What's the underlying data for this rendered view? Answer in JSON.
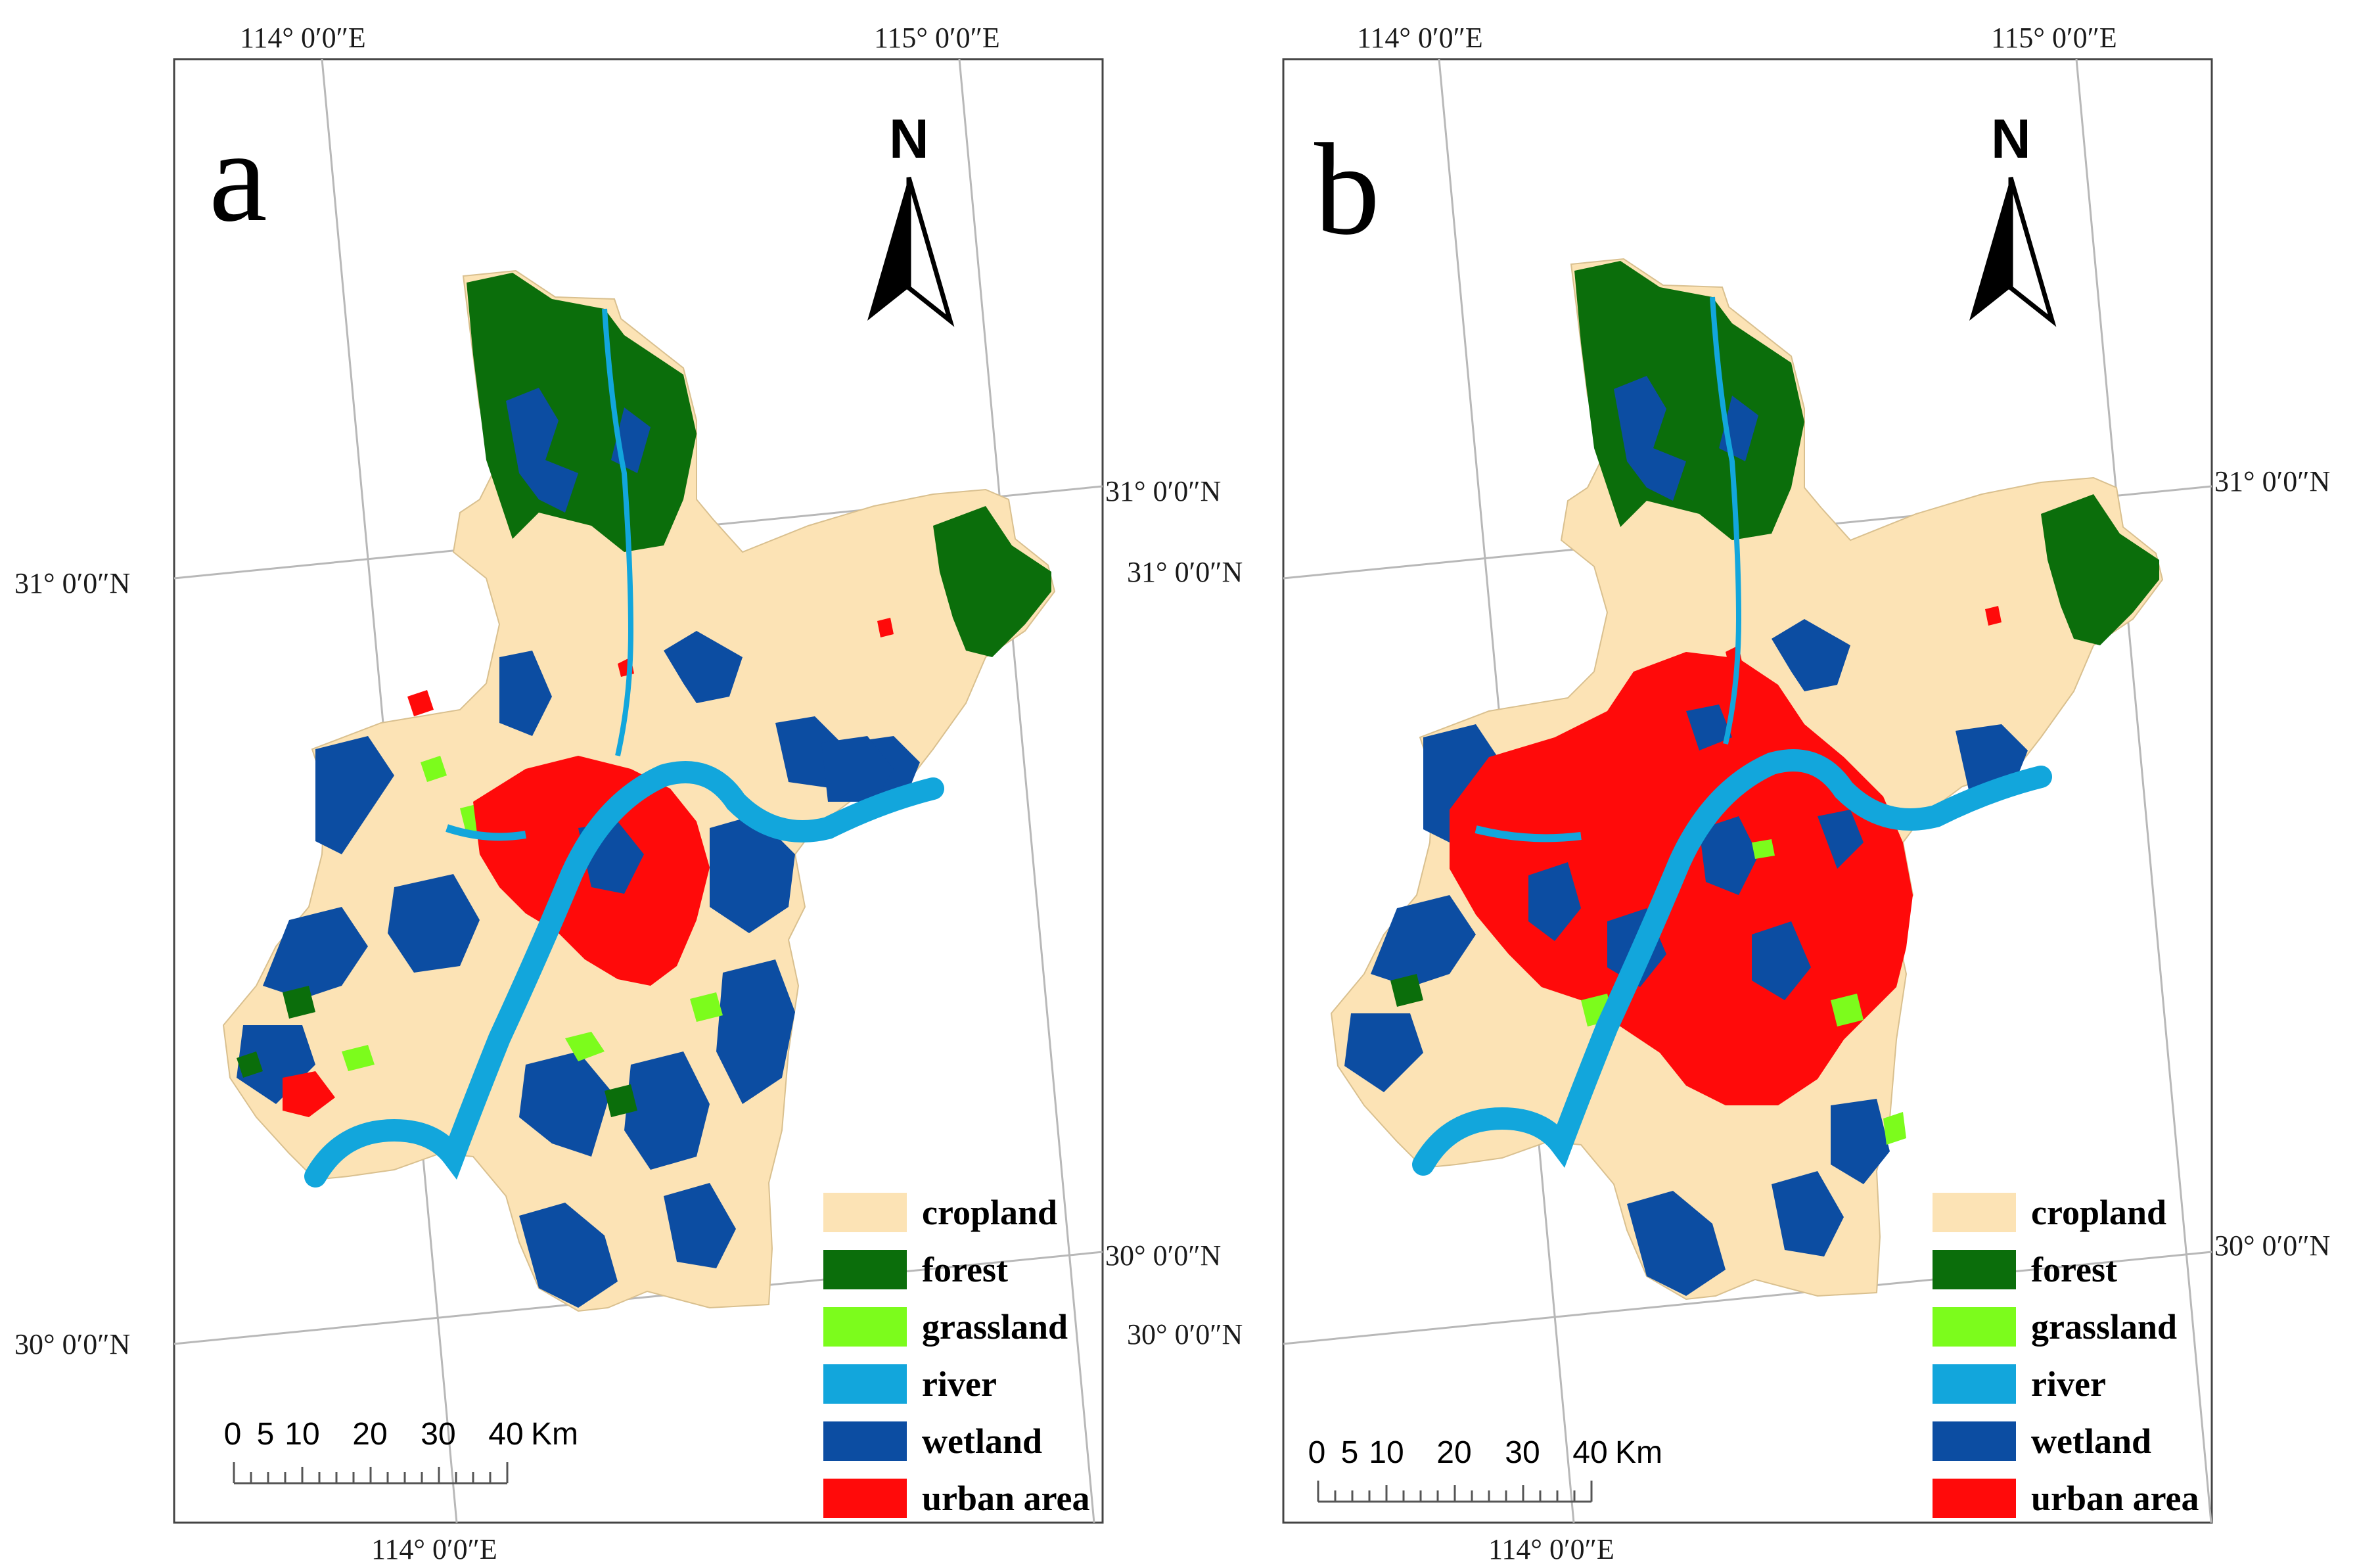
{
  "panels": [
    {
      "letter": "a",
      "lon_top_left": "114° 0′0″E",
      "lon_top_right": "115° 0′0″E",
      "lon_bottom": "114° 0′0″E",
      "lat_left_upper": "31° 0′0″N",
      "lat_left_lower": "30° 0′0″N",
      "lat_right_upper": "31° 0′0″N",
      "lat_right_lower": "30° 0′0″N",
      "north": "N",
      "scale": {
        "ticks": [
          "0",
          "5",
          "10",
          "20",
          "30",
          "40"
        ],
        "unit": "Km"
      }
    },
    {
      "letter": "b",
      "lon_top_left": "114° 0′0″E",
      "lon_top_right": "115° 0′0″E",
      "lon_bottom": "114° 0′0″E",
      "lat_left_upper": "31° 0′0″N",
      "lat_left_lower": "30° 0′0″N",
      "lat_right_upper": "31° 0′0″N",
      "lat_right_lower": "30° 0′0″N",
      "north": "N",
      "scale": {
        "ticks": [
          "0",
          "5",
          "10",
          "20",
          "30",
          "40"
        ],
        "unit": "Km"
      }
    }
  ],
  "legend": [
    {
      "key": "cropland",
      "label": "cropland",
      "color": "#FCE3B5"
    },
    {
      "key": "forest",
      "label": "forest",
      "color": "#0B6E0B"
    },
    {
      "key": "grassland",
      "label": "grassland",
      "color": "#7CFC1C"
    },
    {
      "key": "river",
      "label": "river",
      "color": "#12A6DC"
    },
    {
      "key": "wetland",
      "label": "wetland",
      "color": "#0C4DA2"
    },
    {
      "key": "urban",
      "label": "urban area",
      "color": "#FF0A0A"
    }
  ],
  "colors": {
    "frame": "#444444",
    "graticule": "#b8b8b8",
    "cropland": "#FCE3B5",
    "forest": "#0B6E0B",
    "grassland": "#7CFC1C",
    "river": "#12A6DC",
    "wetland": "#0C4DA2",
    "urban": "#FF0A0A"
  },
  "icons": {
    "north_arrow": "north-arrow-icon",
    "scale_bar": "scale-bar-icon"
  }
}
